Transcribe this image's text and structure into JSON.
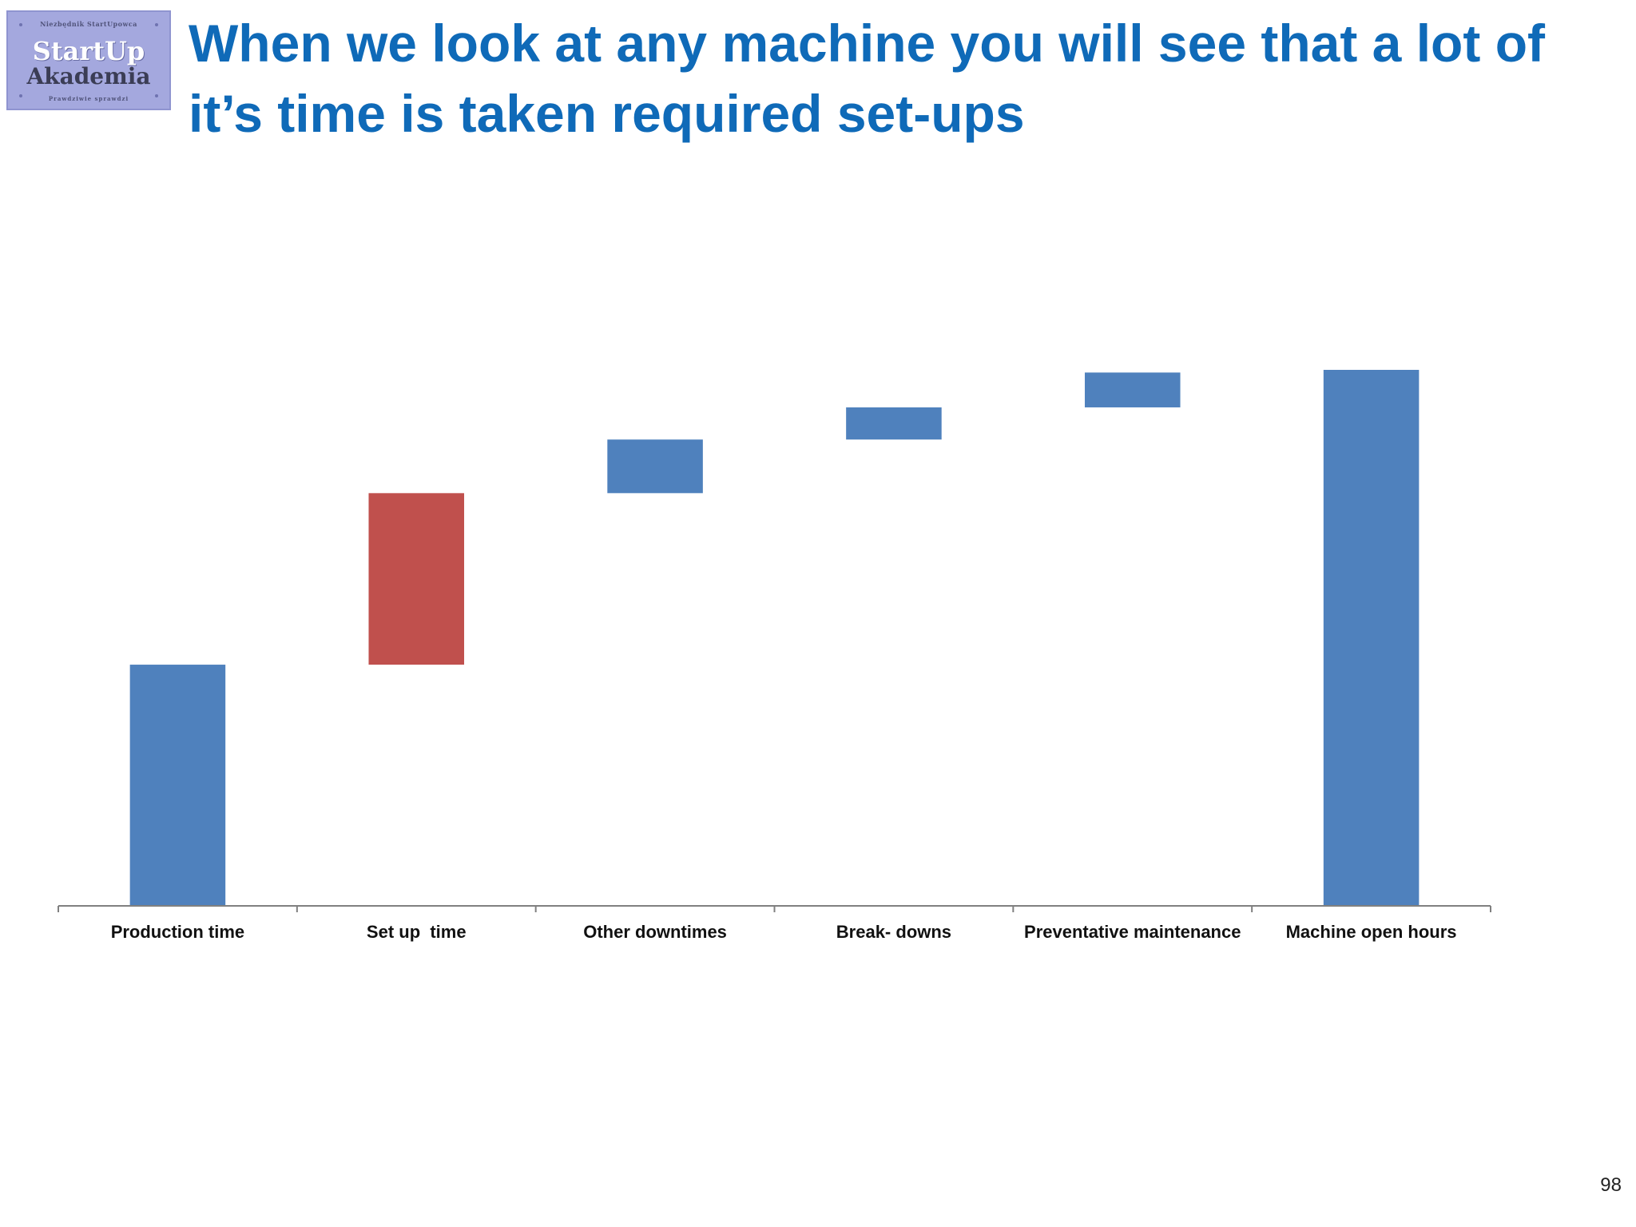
{
  "logo": {
    "tagline_top": "Niezbędnik StartUpowca",
    "brand_line1": "StartUp",
    "brand_line2": "Akademia",
    "tagline_bottom": "Prawdziwie sprawdzi"
  },
  "title": "When we look at any machine you will see that a lot of it’s time is taken required set-ups",
  "page_number": "98",
  "colors": {
    "total": "#4f81bd",
    "highlight": "#c0504d",
    "title": "#0f6ab8",
    "axis": "#808080"
  },
  "chart_data": {
    "type": "bar",
    "variant": "waterfall",
    "categories": [
      "Production time",
      "Set up  time",
      "Other downtimes",
      "Break- downs",
      "Preventative maintenance",
      "Machine open hours"
    ],
    "values": [
      45,
      32,
      10,
      6,
      6.5,
      100
    ],
    "kinds": [
      "total",
      "increment",
      "increment",
      "increment",
      "increment",
      "total"
    ],
    "highlight_index": 1,
    "ylim": [
      0,
      100
    ],
    "grid": false,
    "legend": "none"
  }
}
